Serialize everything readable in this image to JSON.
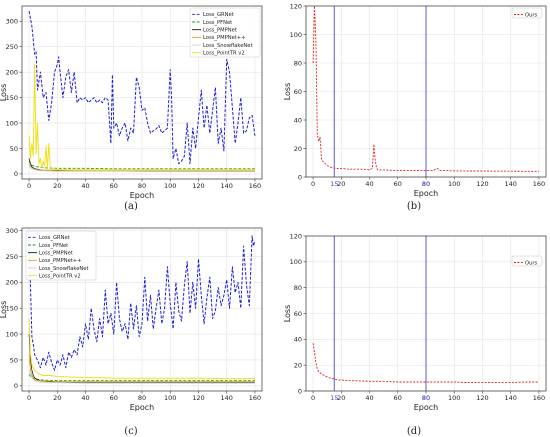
{
  "figure": {
    "panel_labels": [
      "(a)",
      "(b)",
      "(c)",
      "(d)"
    ]
  },
  "chart_data": [
    {
      "id": "a",
      "type": "line",
      "xlabel": "Epoch",
      "ylabel": "Loss",
      "xlim": [
        -5,
        165
      ],
      "ylim": [
        -10,
        330
      ],
      "xticks": [
        0,
        20,
        40,
        60,
        80,
        100,
        120,
        140,
        160
      ],
      "yticks": [
        0,
        50,
        100,
        150,
        200,
        250,
        300
      ],
      "grid": true,
      "legend_position": "top-right",
      "series": [
        {
          "name": "Loss_GRNet",
          "color": "#1f1fd8",
          "dash": "3,1.6",
          "width": 1.0,
          "x": [
            0,
            2,
            4,
            5,
            6,
            8,
            9,
            10,
            12,
            14,
            16,
            18,
            20,
            21,
            22,
            24,
            26,
            28,
            30,
            32,
            34,
            36,
            38,
            40,
            42,
            44,
            46,
            48,
            50,
            52,
            54,
            56,
            58,
            59,
            60,
            62,
            64,
            66,
            68,
            70,
            72,
            74,
            76,
            78,
            80,
            82,
            84,
            86,
            88,
            90,
            92,
            94,
            96,
            98,
            100,
            101,
            102,
            104,
            106,
            108,
            110,
            112,
            114,
            116,
            118,
            120,
            122,
            124,
            126,
            128,
            130,
            132,
            134,
            136,
            138,
            140,
            142,
            144,
            146,
            148,
            150,
            152,
            154,
            156,
            158,
            160
          ],
          "y": [
            320,
            290,
            235,
            240,
            165,
            200,
            175,
            150,
            160,
            105,
            140,
            200,
            215,
            230,
            200,
            150,
            190,
            205,
            160,
            200,
            140,
            150,
            145,
            150,
            140,
            145,
            150,
            140,
            145,
            140,
            150,
            145,
            60,
            195,
            90,
            100,
            75,
            90,
            100,
            65,
            90,
            80,
            190,
            170,
            125,
            130,
            100,
            80,
            85,
            88,
            95,
            80,
            85,
            90,
            205,
            150,
            30,
            50,
            20,
            25,
            35,
            100,
            20,
            90,
            50,
            110,
            165,
            90,
            135,
            80,
            125,
            170,
            60,
            90,
            45,
            225,
            200,
            130,
            60,
            100,
            150,
            80,
            85,
            110,
            115,
            75
          ]
        },
        {
          "name": "Loss_PFNet",
          "color": "#12a812",
          "dash": "3,1.6",
          "width": 0.9,
          "x": [
            0,
            2,
            4,
            6,
            8,
            10,
            20,
            40,
            60,
            80,
            100,
            120,
            140,
            160
          ],
          "y": [
            25,
            17,
            15,
            14,
            13,
            12,
            11,
            11,
            10,
            10,
            10,
            10,
            10,
            10
          ]
        },
        {
          "name": "Loss_PMPNet",
          "color": "#1a1a1a",
          "dash": "",
          "width": 0.8,
          "x": [
            0,
            1,
            2,
            3,
            4,
            6,
            8,
            10,
            15,
            20,
            40,
            60,
            80,
            100,
            120,
            140,
            160
          ],
          "y": [
            30,
            20,
            14,
            12,
            10,
            9,
            8,
            7,
            7,
            6,
            6,
            6,
            5,
            5,
            5,
            5,
            5
          ]
        },
        {
          "name": "Loss_PMPNet++",
          "color": "#e0a020",
          "dash": "",
          "width": 0.8,
          "x": [
            0,
            1,
            2,
            3,
            4,
            6,
            8,
            10,
            15,
            20,
            40,
            60,
            80,
            100,
            120,
            140,
            160
          ],
          "y": [
            20,
            14,
            11,
            10,
            9,
            8,
            8,
            7,
            7,
            7,
            6,
            6,
            6,
            6,
            6,
            6,
            6
          ]
        },
        {
          "name": "Loss_SnowflakeNet",
          "color": "#cfcfcf",
          "dash": "",
          "width": 0.8,
          "x": [
            0,
            2,
            4,
            6,
            8,
            10,
            20,
            40,
            60,
            80,
            100,
            120,
            140,
            160
          ],
          "y": [
            15,
            10,
            8,
            7,
            6,
            6,
            5,
            5,
            5,
            5,
            5,
            5,
            5,
            5
          ]
        },
        {
          "name": "Loss_PointTR v2",
          "color": "#f0e020",
          "dash": "",
          "width": 1.0,
          "x": [
            0,
            1,
            2,
            3,
            4,
            5,
            6,
            7,
            8,
            9,
            10,
            11,
            12,
            13,
            14,
            15,
            16,
            18,
            20,
            22,
            25,
            30,
            40,
            60,
            80,
            100,
            120,
            140,
            160
          ],
          "y": [
            75,
            30,
            60,
            35,
            215,
            40,
            100,
            20,
            30,
            12,
            25,
            15,
            55,
            10,
            60,
            15,
            8,
            10,
            9,
            8,
            8,
            8,
            8,
            8,
            8,
            8,
            8,
            8,
            8
          ]
        }
      ]
    },
    {
      "id": "b",
      "type": "line",
      "xlabel": "Epoch",
      "ylabel": "Loss",
      "xlim": [
        -5,
        165
      ],
      "ylim": [
        0,
        120
      ],
      "xticks": [
        0,
        20,
        40,
        60,
        80,
        100,
        120,
        140,
        160
      ],
      "yticks": [
        0,
        20,
        40,
        60,
        80,
        100,
        120
      ],
      "extra_tick_labels": [
        {
          "x": 15,
          "text": "15"
        },
        {
          "x": 80,
          "text": "80"
        }
      ],
      "vlines": [
        15,
        80
      ],
      "vline_color": "#4a4ad0",
      "grid": true,
      "legend_position": "top-right",
      "series": [
        {
          "name": "Ours",
          "color": "#e02020",
          "dash": "2,1.4",
          "width": 0.9,
          "x": [
            0,
            1,
            2,
            3,
            4,
            5,
            6,
            8,
            10,
            12,
            14,
            16,
            18,
            20,
            25,
            30,
            35,
            40,
            42,
            43,
            44,
            45,
            46,
            50,
            60,
            70,
            80,
            85,
            88,
            90,
            92,
            95,
            100,
            110,
            120,
            130,
            140,
            150,
            160
          ],
          "y": [
            80,
            120,
            95,
            30,
            25,
            28,
            12,
            10,
            8,
            7,
            6.5,
            6,
            6,
            6,
            5.5,
            5.5,
            5.5,
            5,
            6,
            23,
            12,
            6,
            5,
            5,
            4.5,
            4.5,
            4.5,
            4.5,
            6,
            4.5,
            4.5,
            4.5,
            4.3,
            4.2,
            4.2,
            4.1,
            4.1,
            4,
            4
          ]
        }
      ]
    },
    {
      "id": "c",
      "type": "line",
      "xlabel": "Epoch",
      "ylabel": "Loss",
      "xlim": [
        -5,
        165
      ],
      "ylim": [
        -10,
        305
      ],
      "xticks": [
        0,
        20,
        40,
        60,
        80,
        100,
        120,
        140,
        160
      ],
      "yticks": [
        0,
        50,
        100,
        150,
        200,
        250,
        300
      ],
      "grid": true,
      "legend_position": "top-left",
      "series": [
        {
          "name": "Loss_GRNet",
          "color": "#1f1fd8",
          "dash": "3,1.6",
          "width": 1.0,
          "x": [
            0,
            1,
            2,
            3,
            4,
            6,
            8,
            10,
            12,
            14,
            16,
            18,
            20,
            22,
            24,
            26,
            28,
            30,
            32,
            34,
            36,
            38,
            40,
            42,
            44,
            46,
            48,
            50,
            52,
            54,
            56,
            58,
            60,
            62,
            64,
            66,
            68,
            70,
            72,
            74,
            76,
            78,
            80,
            82,
            84,
            86,
            88,
            90,
            92,
            94,
            96,
            98,
            100,
            102,
            104,
            106,
            108,
            110,
            112,
            114,
            116,
            118,
            120,
            122,
            124,
            126,
            128,
            130,
            132,
            134,
            136,
            138,
            140,
            142,
            144,
            146,
            148,
            150,
            152,
            154,
            156,
            158,
            159,
            160
          ],
          "y": [
            285,
            190,
            95,
            80,
            60,
            50,
            35,
            55,
            40,
            65,
            45,
            30,
            50,
            40,
            60,
            35,
            65,
            55,
            70,
            60,
            95,
            75,
            120,
            90,
            150,
            110,
            85,
            130,
            95,
            185,
            120,
            140,
            100,
            200,
            130,
            105,
            120,
            90,
            160,
            110,
            155,
            95,
            120,
            210,
            125,
            175,
            110,
            150,
            185,
            120,
            150,
            230,
            160,
            110,
            200,
            145,
            125,
            195,
            240,
            140,
            200,
            150,
            245,
            175,
            120,
            170,
            210,
            130,
            145,
            190,
            155,
            175,
            205,
            150,
            230,
            180,
            200,
            150,
            270,
            195,
            155,
            290,
            270,
            280
          ]
        },
        {
          "name": "Loss_PFNet",
          "color": "#12a812",
          "dash": "3,1.6",
          "width": 0.9,
          "x": [
            0,
            2,
            4,
            6,
            8,
            10,
            20,
            40,
            60,
            80,
            100,
            120,
            140,
            160
          ],
          "y": [
            22,
            15,
            13,
            12,
            12,
            11,
            10,
            10,
            10,
            10,
            10,
            10,
            10,
            10
          ]
        },
        {
          "name": "Loss_PMPNet",
          "color": "#1a1a1a",
          "dash": "",
          "width": 0.8,
          "x": [
            0,
            1,
            2,
            3,
            4,
            6,
            8,
            10,
            15,
            20,
            40,
            60,
            80,
            100,
            120,
            140,
            160
          ],
          "y": [
            100,
            50,
            30,
            20,
            15,
            12,
            10,
            9,
            8,
            8,
            7,
            7,
            7,
            7,
            7,
            7,
            7
          ]
        },
        {
          "name": "Loss_PMPNet++",
          "color": "#e0a020",
          "dash": "",
          "width": 0.8,
          "x": [
            0,
            1,
            2,
            3,
            4,
            6,
            8,
            10,
            15,
            20,
            40,
            60,
            80,
            100,
            120,
            140,
            160
          ],
          "y": [
            60,
            30,
            20,
            15,
            12,
            10,
            10,
            9,
            9,
            8,
            8,
            8,
            8,
            8,
            8,
            8,
            8
          ]
        },
        {
          "name": "Loss_SnowflakeNet",
          "color": "#cfcfcf",
          "dash": "",
          "width": 0.8,
          "x": [
            0,
            2,
            4,
            6,
            8,
            10,
            20,
            40,
            60,
            80,
            100,
            120,
            140,
            160
          ],
          "y": [
            30,
            15,
            10,
            8,
            7,
            6,
            6,
            5,
            5,
            5,
            5,
            5,
            5,
            5
          ]
        },
        {
          "name": "Loss_PointTR v2",
          "color": "#f0e020",
          "dash": "",
          "width": 1.0,
          "x": [
            0,
            1,
            2,
            3,
            4,
            6,
            8,
            10,
            15,
            20,
            30,
            40,
            60,
            80,
            100,
            120,
            140,
            160
          ],
          "y": [
            130,
            60,
            40,
            35,
            30,
            25,
            22,
            20,
            20,
            18,
            17,
            16,
            15,
            15,
            15,
            15,
            14,
            14
          ]
        }
      ]
    },
    {
      "id": "d",
      "type": "line",
      "xlabel": "Epoch",
      "ylabel": "Loss",
      "xlim": [
        -5,
        165
      ],
      "ylim": [
        0,
        120
      ],
      "xticks": [
        0,
        20,
        40,
        60,
        80,
        100,
        120,
        140,
        160
      ],
      "yticks": [
        0,
        20,
        40,
        60,
        80,
        100,
        120
      ],
      "extra_tick_labels": [
        {
          "x": 15,
          "text": "15"
        },
        {
          "x": 80,
          "text": "80"
        }
      ],
      "vlines": [
        15,
        80
      ],
      "vline_color": "#4a4ad0",
      "grid": true,
      "legend_position": "top-right",
      "series": [
        {
          "name": "Ours",
          "color": "#e02020",
          "dash": "2,1.4",
          "width": 0.9,
          "x": [
            0,
            1,
            2,
            3,
            4,
            6,
            8,
            10,
            12,
            14,
            16,
            18,
            20,
            25,
            30,
            40,
            50,
            60,
            70,
            80,
            90,
            100,
            110,
            120,
            130,
            140,
            150,
            160
          ],
          "y": [
            37,
            30,
            22,
            17,
            15,
            13,
            12,
            11,
            10,
            9.5,
            9,
            8.5,
            8.5,
            8,
            8,
            7.5,
            7.5,
            7,
            7,
            7,
            7,
            7,
            6.5,
            6.5,
            6.5,
            6.5,
            7,
            7
          ]
        }
      ]
    }
  ]
}
